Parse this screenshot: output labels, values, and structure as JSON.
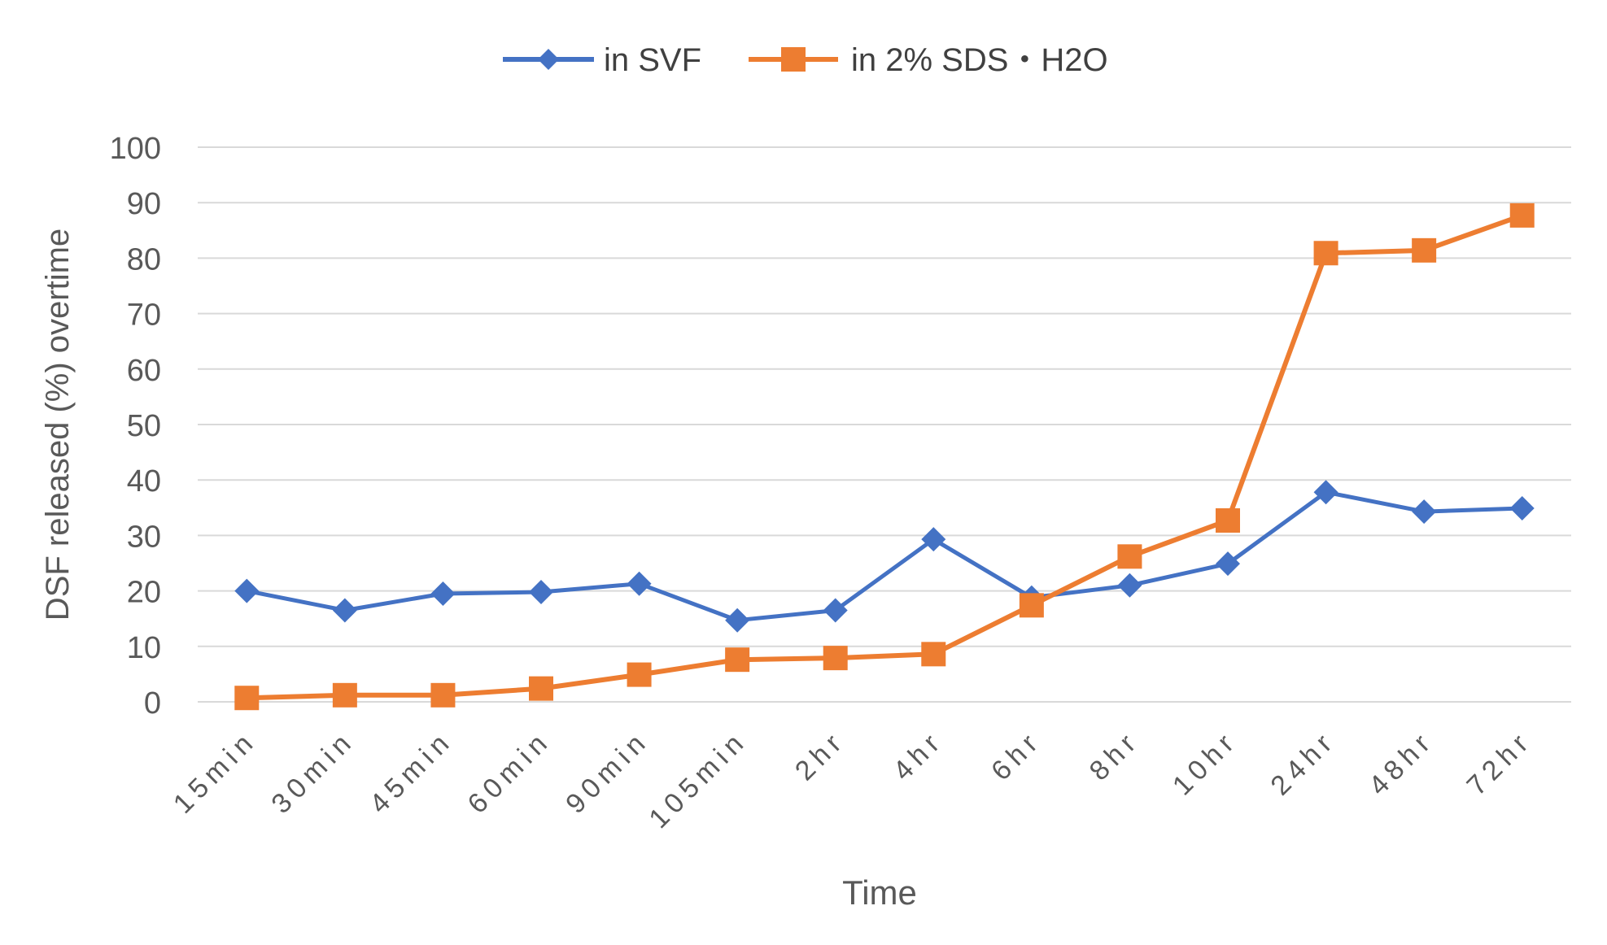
{
  "chart_data": {
    "type": "line",
    "title": "",
    "xlabel": "Time",
    "ylabel": "DSF released (%) overtime",
    "ylim": [
      0,
      100
    ],
    "yticks": [
      0,
      10,
      20,
      30,
      40,
      50,
      60,
      70,
      80,
      90,
      100
    ],
    "ytick_labels": [
      "0",
      "10",
      "20",
      "30",
      "40",
      "50",
      "60",
      "70",
      "80",
      "90",
      "100"
    ],
    "grid": true,
    "legend_position": "top-center",
    "categories": [
      "15min",
      "30min",
      "45min",
      "60min",
      "90min",
      "105min",
      "2hr",
      "4hr",
      "6hr",
      "8hr",
      "10hr",
      "24hr",
      "48hr",
      "72hr"
    ],
    "series": [
      {
        "name": "in SVF",
        "color": "#4472C4",
        "marker": "diamond",
        "values": [
          20,
          16.5,
          19.5,
          19.8,
          21.3,
          14.7,
          16.5,
          29.3,
          18.8,
          21,
          24.9,
          37.8,
          34.3,
          34.9
        ]
      },
      {
        "name": "in 2% SDS・H2O",
        "color": "#ED7D31",
        "marker": "square",
        "values": [
          0.7,
          1.2,
          1.2,
          2.4,
          4.9,
          7.6,
          7.9,
          8.6,
          17.4,
          26.2,
          32.7,
          80.9,
          81.4,
          87.7
        ]
      }
    ]
  }
}
